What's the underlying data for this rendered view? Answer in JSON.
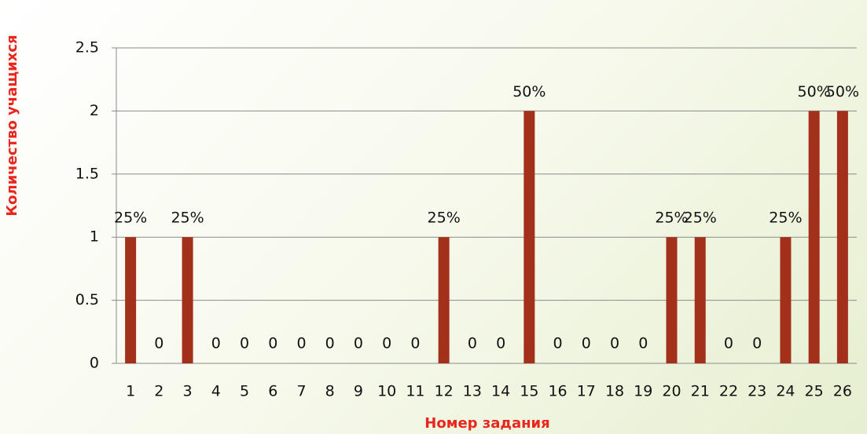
{
  "chart_data": {
    "type": "bar",
    "x_label": "Номер задания",
    "y_label": "Количество учащихся",
    "categories": [
      "1",
      "2",
      "3",
      "4",
      "5",
      "6",
      "7",
      "8",
      "9",
      "10",
      "11",
      "12",
      "13",
      "14",
      "15",
      "16",
      "17",
      "18",
      "19",
      "20",
      "21",
      "22",
      "23",
      "24",
      "25",
      "26"
    ],
    "values": [
      1,
      0,
      1,
      0,
      0,
      0,
      0,
      0,
      0,
      0,
      0,
      1,
      0,
      0,
      2,
      0,
      0,
      0,
      0,
      1,
      1,
      0,
      0,
      1,
      2,
      2
    ],
    "shares": [
      25,
      0,
      25,
      0,
      0,
      0,
      0,
      0,
      0,
      0,
      0,
      25,
      0,
      0,
      50,
      0,
      0,
      0,
      0,
      25,
      25,
      0,
      0,
      25,
      50,
      50
    ],
    "share_labels": [
      "25%",
      "0",
      "25%",
      "0",
      "0",
      "0",
      "0",
      "0",
      "0",
      "0",
      "0",
      "25%",
      "0",
      "0",
      "50%",
      "0",
      "0",
      "0",
      "0",
      "25%",
      "25%",
      "0",
      "0",
      "25%",
      "50%",
      "50%"
    ],
    "color": "#a3301a",
    "ylim": [
      0,
      2.5
    ],
    "yticks": [
      0,
      0.5,
      1,
      1.5,
      2,
      2.5
    ],
    "grid": true
  }
}
